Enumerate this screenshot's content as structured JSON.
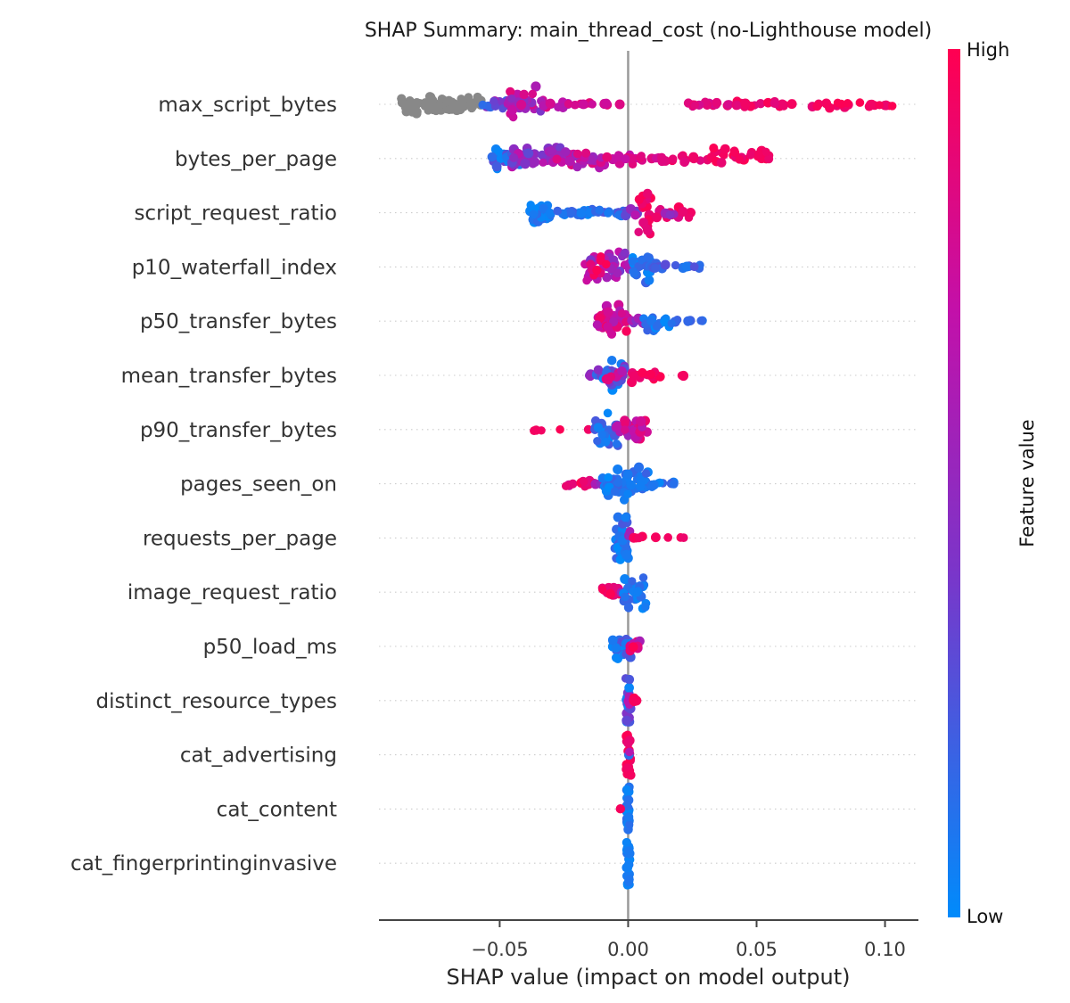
{
  "chart_data": {
    "type": "scatter",
    "variant": "shap-beeswarm-summary",
    "title": "SHAP Summary: main_thread_cost (no-Lighthouse model)",
    "xlabel": "SHAP value (impact on model output)",
    "xlim": [
      -0.097,
      0.113
    ],
    "grid": "dotted-horizontal",
    "zero_line": true,
    "xticks": {
      "values": [
        -0.05,
        0.0,
        0.05,
        0.1
      ],
      "labels": [
        "−0.05",
        "0.00",
        "0.05",
        "0.10"
      ]
    },
    "colorbar": {
      "label": "Feature value",
      "high_label": "High",
      "low_label": "Low",
      "cmap_stops": [
        "#008bfb",
        "#7b35c9",
        "#c310a9",
        "#ff0051"
      ],
      "cmap_positions": [
        0,
        0.4,
        0.7,
        1
      ],
      "nan_color": "#888888"
    },
    "features": [
      {
        "name": "max_script_bytes",
        "clusters": [
          {
            "x0": -0.089,
            "x1": -0.07,
            "n": 45,
            "gray": 1,
            "s": 13
          },
          {
            "x0": -0.072,
            "x1": -0.057,
            "n": 30,
            "gray": 1,
            "s": 10
          },
          {
            "x0": -0.057,
            "x1": -0.046,
            "n": 18,
            "c0": 0.05,
            "c1": 0.6,
            "s": 8
          },
          {
            "x0": -0.047,
            "x1": -0.033,
            "n": 32,
            "c0": 0.35,
            "c1": 0.85,
            "s": 20
          },
          {
            "x0": -0.033,
            "x1": -0.023,
            "n": 10,
            "c0": 0.55,
            "c1": 0.85,
            "s": 6
          },
          {
            "x0": -0.022,
            "x1": -0.008,
            "n": 11,
            "c0": 0.72,
            "c1": 0.88,
            "s": 2
          },
          {
            "x0": -0.0035,
            "x1": -0.003,
            "n": 1,
            "c0": 0.8,
            "c1": 0.85,
            "s": 0
          },
          {
            "x0": 0.022,
            "x1": 0.04,
            "n": 16,
            "c0": 0.78,
            "c1": 0.92,
            "s": 3
          },
          {
            "x0": 0.04,
            "x1": 0.072,
            "n": 22,
            "c0": 0.85,
            "c1": 0.98,
            "s": 4
          },
          {
            "x0": 0.072,
            "x1": 0.103,
            "n": 22,
            "c0": 0.9,
            "c1": 1.0,
            "s": 4
          }
        ]
      },
      {
        "name": "bytes_per_page",
        "clusters": [
          {
            "x0": -0.053,
            "x1": -0.042,
            "n": 32,
            "c0": 0.0,
            "c1": 0.35,
            "s": 14
          },
          {
            "x0": -0.046,
            "x1": -0.026,
            "n": 45,
            "c0": 0.3,
            "c1": 0.7,
            "s": 16
          },
          {
            "x0": -0.028,
            "x1": -0.009,
            "n": 32,
            "c0": 0.5,
            "c1": 0.85,
            "s": 12
          },
          {
            "x0": -0.009,
            "x1": 0.012,
            "n": 20,
            "c0": 0.68,
            "c1": 0.9,
            "s": 7
          },
          {
            "x0": 0.012,
            "x1": 0.032,
            "n": 16,
            "c0": 0.8,
            "c1": 0.95,
            "s": 6
          },
          {
            "x0": 0.032,
            "x1": 0.055,
            "n": 28,
            "c0": 0.88,
            "c1": 1.0,
            "s": 12
          }
        ]
      },
      {
        "name": "script_request_ratio",
        "clusters": [
          {
            "x0": -0.039,
            "x1": -0.0305,
            "n": 28,
            "c0": 0.0,
            "c1": 0.15,
            "s": 13
          },
          {
            "x0": -0.0305,
            "x1": -0.013,
            "n": 22,
            "c0": 0.0,
            "c1": 0.2,
            "s": 5
          },
          {
            "x0": -0.013,
            "x1": -0.001,
            "n": 14,
            "c0": 0.05,
            "c1": 0.3,
            "s": 4
          },
          {
            "x0": -0.001,
            "x1": 0.004,
            "n": 8,
            "c0": 0.3,
            "c1": 0.7,
            "s": 6
          },
          {
            "x0": 0.004,
            "x1": 0.009,
            "n": 22,
            "c0": 0.85,
            "c1": 1.0,
            "s": 24,
            "u": 1
          },
          {
            "x0": 0.009,
            "x1": 0.025,
            "n": 15,
            "c0": 0.8,
            "c1": 1.0,
            "s": 7
          },
          {
            "x0": 0.013,
            "x1": 0.02,
            "n": 3,
            "c0": 0.45,
            "c1": 0.6,
            "s": 4
          }
        ]
      },
      {
        "name": "p10_waterfall_index",
        "clusters": [
          {
            "x0": -0.017,
            "x1": 0.0005,
            "n": 50,
            "c0": 0.35,
            "c1": 0.75,
            "s": 21
          },
          {
            "x0": -0.015,
            "x1": -0.002,
            "n": 8,
            "c0": 0.85,
            "c1": 1.0,
            "s": 14
          },
          {
            "x0": 0.0005,
            "x1": 0.009,
            "n": 28,
            "c0": 0.0,
            "c1": 0.2,
            "s": 18
          },
          {
            "x0": 0.009,
            "x1": 0.028,
            "n": 14,
            "c0": 0.05,
            "c1": 0.3,
            "s": 5
          }
        ]
      },
      {
        "name": "p50_transfer_bytes",
        "clusters": [
          {
            "x0": -0.0125,
            "x1": 0.0,
            "n": 38,
            "c0": 0.6,
            "c1": 0.97,
            "s": 19
          },
          {
            "x0": 0.0,
            "x1": 0.007,
            "n": 8,
            "c0": 0.4,
            "c1": 0.65,
            "s": 6
          },
          {
            "x0": 0.006,
            "x1": 0.016,
            "n": 18,
            "c0": 0.0,
            "c1": 0.25,
            "s": 15
          },
          {
            "x0": 0.016,
            "x1": 0.026,
            "n": 7,
            "c0": 0.1,
            "c1": 0.3,
            "s": 3
          },
          {
            "x0": 0.028,
            "x1": 0.031,
            "n": 2,
            "c0": 0.1,
            "c1": 0.2,
            "s": 1
          }
        ]
      },
      {
        "name": "mean_transfer_bytes",
        "clusters": [
          {
            "x0": -0.0155,
            "x1": -0.013,
            "n": 3,
            "c0": 0.45,
            "c1": 0.6,
            "s": 3
          },
          {
            "x0": -0.013,
            "x1": -0.001,
            "n": 30,
            "c0": 0.0,
            "c1": 0.5,
            "s": 19
          },
          {
            "x0": -0.009,
            "x1": -0.002,
            "n": 8,
            "c0": 0.6,
            "c1": 0.9,
            "s": 10
          },
          {
            "x0": 0.001,
            "x1": 0.013,
            "n": 18,
            "c0": 0.85,
            "c1": 1.0,
            "s": 8
          },
          {
            "x0": 0.019,
            "x1": 0.0235,
            "n": 2,
            "c0": 0.92,
            "c1": 0.97,
            "s": 1
          }
        ]
      },
      {
        "name": "p90_transfer_bytes",
        "clusters": [
          {
            "x0": -0.037,
            "x1": -0.031,
            "n": 3,
            "c0": 0.93,
            "c1": 1.0,
            "s": 3
          },
          {
            "x0": -0.027,
            "x1": -0.026,
            "n": 1,
            "c0": 0.95,
            "c1": 1.0,
            "s": 0
          },
          {
            "x0": -0.016,
            "x1": -0.015,
            "n": 1,
            "c0": 0.9,
            "c1": 0.95,
            "s": 0
          },
          {
            "x0": -0.013,
            "x1": -0.004,
            "n": 24,
            "c0": 0.0,
            "c1": 0.25,
            "s": 19
          },
          {
            "x0": -0.005,
            "x1": 0.0075,
            "n": 28,
            "c0": 0.5,
            "c1": 0.95,
            "s": 17
          }
        ]
      },
      {
        "name": "pages_seen_on",
        "clusters": [
          {
            "x0": -0.0275,
            "x1": -0.013,
            "n": 13,
            "c0": 0.8,
            "c1": 1.0,
            "s": 4
          },
          {
            "x0": -0.013,
            "x1": -0.01,
            "n": 3,
            "c0": 0.45,
            "c1": 0.7,
            "s": 4
          },
          {
            "x0": -0.01,
            "x1": 0.008,
            "n": 50,
            "c0": 0.0,
            "c1": 0.2,
            "s": 21
          },
          {
            "x0": 0.008,
            "x1": 0.018,
            "n": 11,
            "c0": 0.0,
            "c1": 0.2,
            "s": 5
          }
        ]
      },
      {
        "name": "requests_per_page",
        "clusters": [
          {
            "x0": -0.0055,
            "x1": 0.0005,
            "n": 38,
            "c0": 0.0,
            "c1": 0.25,
            "s": 25,
            "u": 1
          },
          {
            "x0": -0.001,
            "x1": 0.001,
            "n": 4,
            "c0": 0.45,
            "c1": 0.7,
            "s": 8
          },
          {
            "x0": 0.002,
            "x1": 0.0235,
            "n": 8,
            "c0": 0.9,
            "c1": 1.0,
            "s": 2
          }
        ]
      },
      {
        "name": "image_request_ratio",
        "clusters": [
          {
            "x0": -0.011,
            "x1": -0.002,
            "n": 14,
            "c0": 0.85,
            "c1": 1.0,
            "s": 7
          },
          {
            "x0": -0.003,
            "x1": -0.001,
            "n": 2,
            "c0": 0.5,
            "c1": 0.65,
            "s": 4
          },
          {
            "x0": -0.002,
            "x1": 0.007,
            "n": 28,
            "c0": 0.0,
            "c1": 0.2,
            "s": 25
          }
        ]
      },
      {
        "name": "p50_load_ms",
        "clusters": [
          {
            "x0": -0.006,
            "x1": 0.002,
            "n": 26,
            "c0": 0.0,
            "c1": 0.3,
            "s": 16
          },
          {
            "x0": 0.0,
            "x1": 0.005,
            "n": 9,
            "c0": 0.5,
            "c1": 0.9,
            "s": 8
          },
          {
            "x0": 0.001,
            "x1": 0.003,
            "n": 1,
            "c0": 0.95,
            "c1": 1.0,
            "s": 2
          }
        ]
      },
      {
        "name": "distinct_resource_types",
        "clusters": [
          {
            "x0": -0.001,
            "x1": 0.001,
            "n": 26,
            "c0": 0.0,
            "c1": 0.45,
            "s": 25,
            "u": 1
          },
          {
            "x0": -0.0005,
            "x1": 0.0015,
            "n": 4,
            "c0": 0.55,
            "c1": 0.75,
            "s": 20
          },
          {
            "x0": 0.001,
            "x1": 0.005,
            "n": 6,
            "c0": 0.92,
            "c1": 1.0,
            "s": 3
          }
        ]
      },
      {
        "name": "cat_advertising",
        "clusters": [
          {
            "x0": -0.0008,
            "x1": 0.0012,
            "n": 24,
            "c0": 0.88,
            "c1": 1.0,
            "s": 23,
            "u": 1
          },
          {
            "x0": -0.0002,
            "x1": 0.0008,
            "n": 1,
            "c0": 0.1,
            "c1": 0.2,
            "s": 2
          },
          {
            "x0": 0.0,
            "x1": 0.001,
            "n": 1,
            "c0": 0.55,
            "c1": 0.65,
            "s": 28
          }
        ]
      },
      {
        "name": "cat_content",
        "clusters": [
          {
            "x0": -0.0006,
            "x1": 0.0006,
            "n": 24,
            "c0": 0.0,
            "c1": 0.15,
            "s": 25,
            "u": 1
          },
          {
            "x0": -0.0035,
            "x1": -0.0025,
            "n": 1,
            "c0": 0.92,
            "c1": 0.97,
            "s": 1
          }
        ]
      },
      {
        "name": "cat_fingerprintinginvasive",
        "clusters": [
          {
            "x0": -0.0006,
            "x1": 0.0006,
            "n": 26,
            "c0": 0.0,
            "c1": 0.12,
            "s": 26,
            "u": 1
          }
        ]
      }
    ],
    "style_colors": {
      "gridline": "#cccccc",
      "zero_line": "#9a9a9a",
      "axis": "#444444",
      "title_text": "#1a1a1a",
      "label_text": "#333333"
    }
  }
}
